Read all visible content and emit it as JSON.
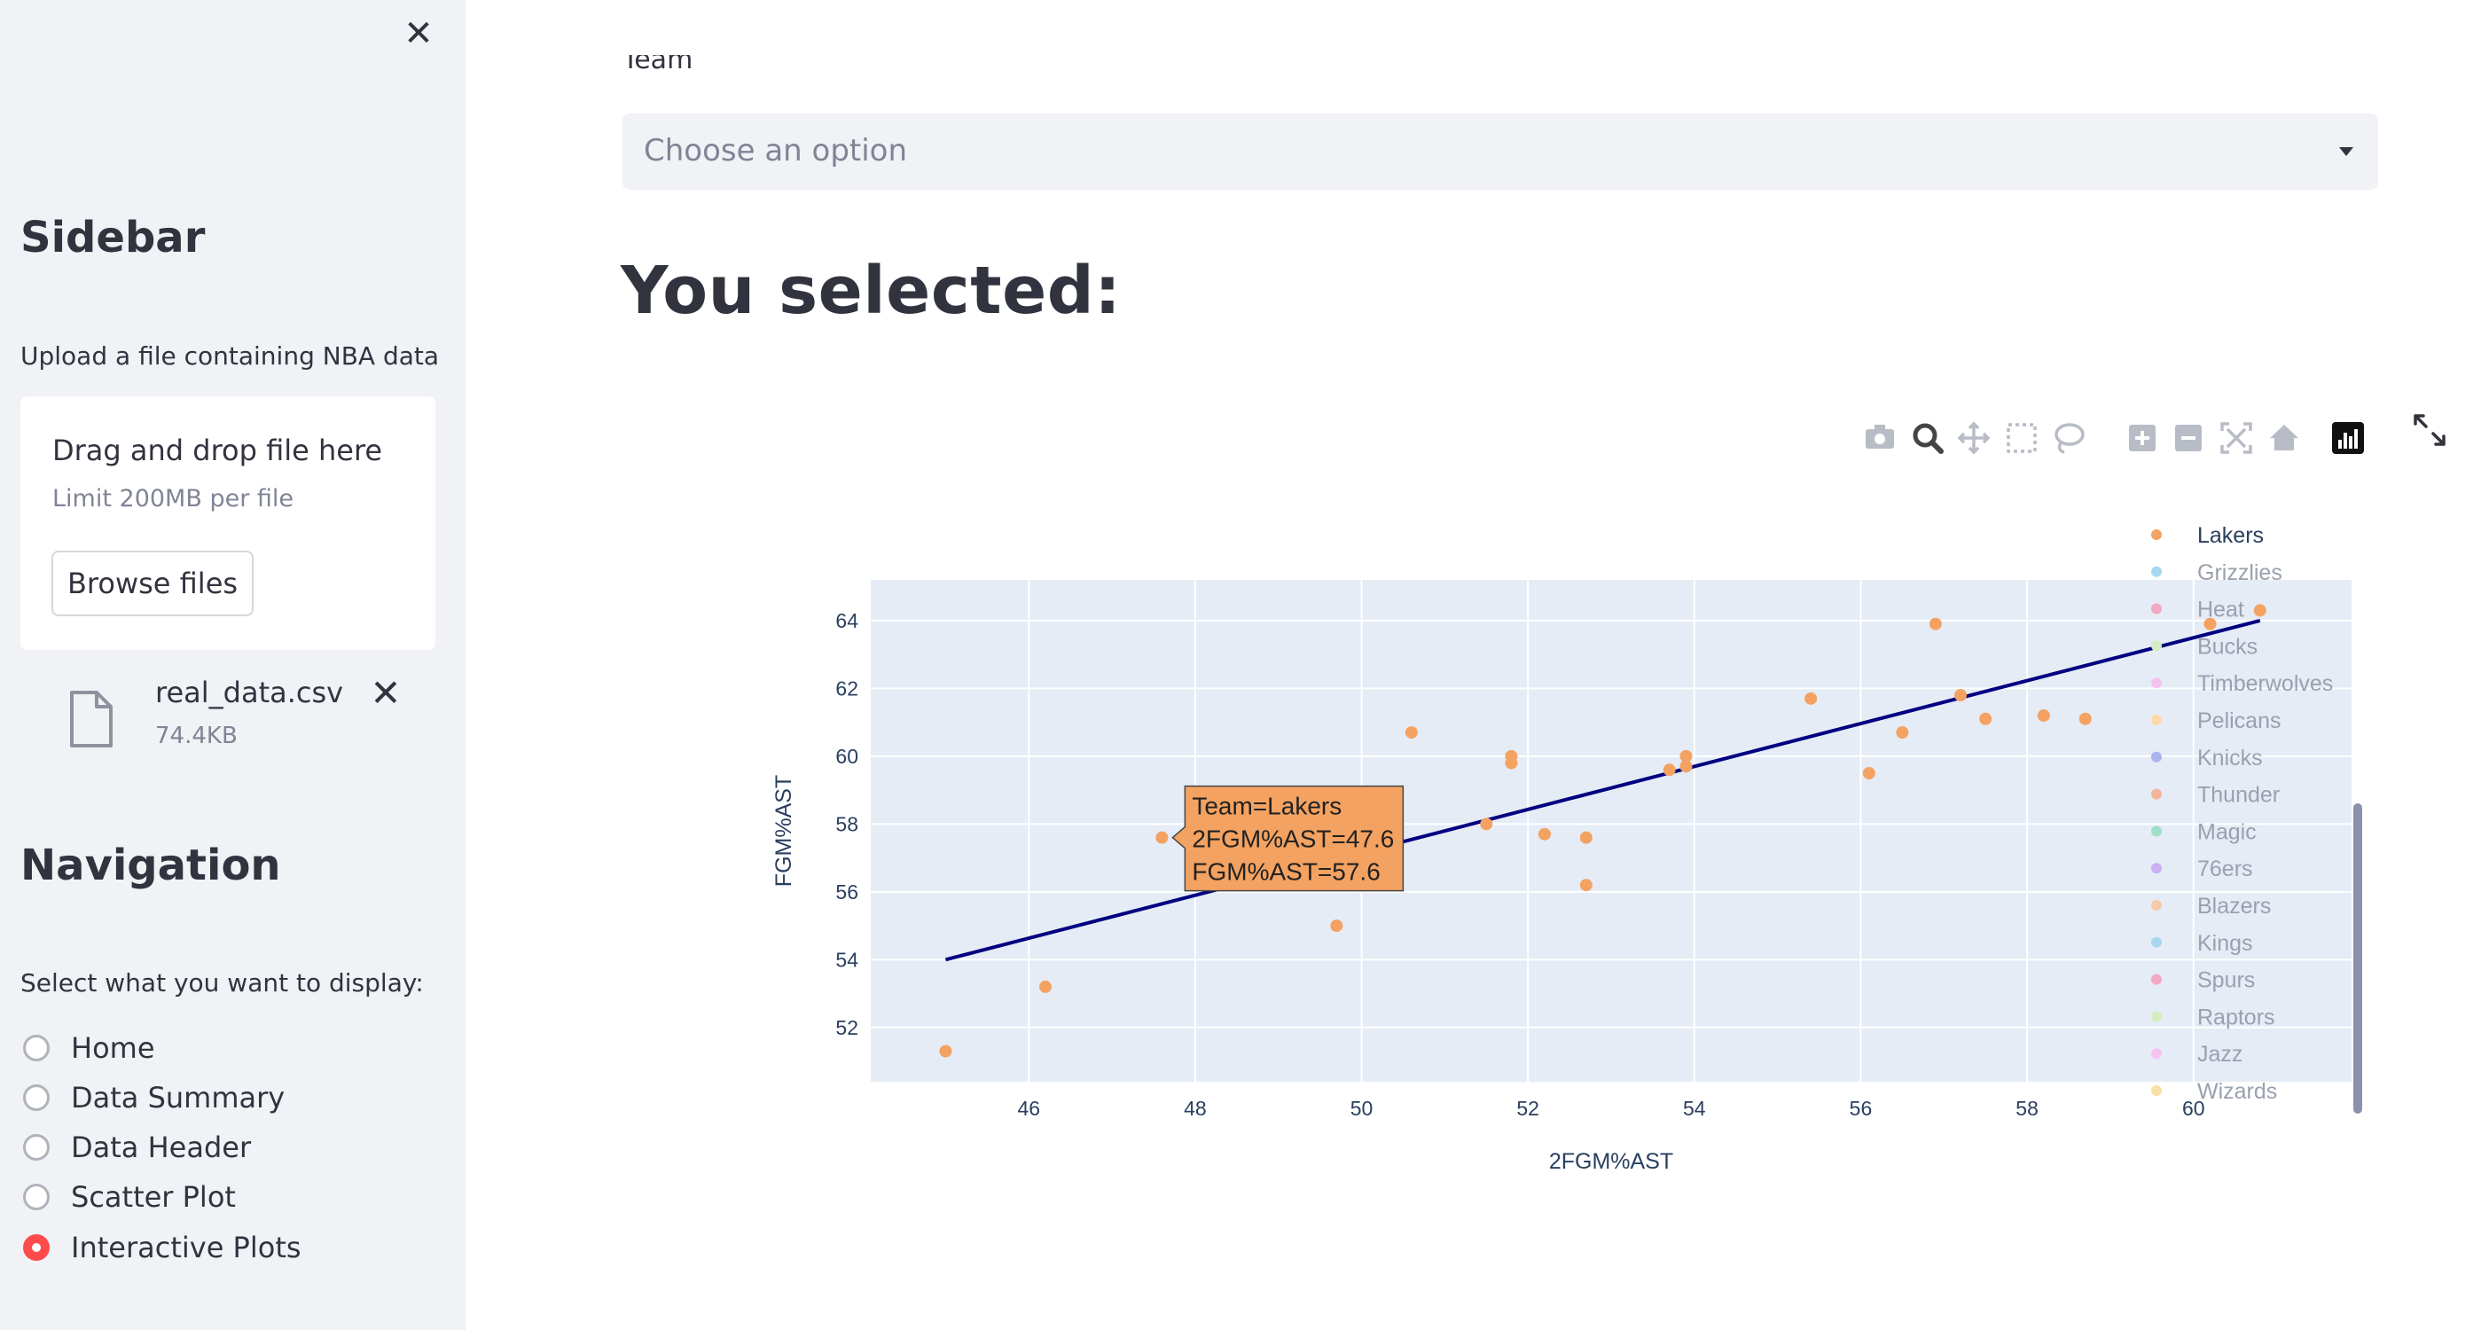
{
  "sidebar": {
    "title": "Sidebar",
    "upload_label": "Upload a file containing NBA data",
    "dropzone": {
      "main": "Drag and drop file here",
      "limit": "Limit 200MB per file",
      "browse": "Browse files"
    },
    "file": {
      "name": "real_data.csv",
      "size": "74.4KB"
    },
    "nav_title": "Navigation",
    "nav_prompt": "Select what you want to display:",
    "options": [
      {
        "label": "Home",
        "selected": false
      },
      {
        "label": "Data Summary",
        "selected": false
      },
      {
        "label": "Data Header",
        "selected": false
      },
      {
        "label": "Scatter Plot",
        "selected": false
      },
      {
        "label": "Interactive Plots",
        "selected": true
      }
    ]
  },
  "main": {
    "select_label": "Team",
    "select_placeholder": "Choose an option",
    "heading": "You selected:"
  },
  "modebar": {
    "icons": [
      "camera-icon",
      "zoom-icon",
      "pan-icon",
      "box-select-icon",
      "lasso-select-icon",
      "zoom-in-icon",
      "zoom-out-icon",
      "autoscale-icon",
      "reset-axes-icon",
      "plotly-logo-icon"
    ]
  },
  "colors": {
    "accent": "#ff4b4b",
    "point": "#f4a261",
    "trendline": "#000080",
    "plot_bg": "#e5ecf6",
    "tooltip_bg": "#f4a261"
  },
  "chart_data": {
    "type": "scatter",
    "xlabel": "2FGM%AST",
    "ylabel": "FGM%AST",
    "xlim": [
      44.1,
      61.9
    ],
    "ylim": [
      50.4,
      65.2
    ],
    "xticks": [
      46,
      48,
      50,
      52,
      54,
      56,
      58,
      60
    ],
    "yticks": [
      52,
      54,
      56,
      58,
      60,
      62,
      64
    ],
    "grid": true,
    "legend_position": "right",
    "series": [
      {
        "name": "Lakers",
        "color": "#f4a261",
        "points": [
          [
            45.0,
            51.3
          ],
          [
            46.2,
            53.2
          ],
          [
            47.6,
            57.6
          ],
          [
            49.7,
            55.0
          ],
          [
            50.6,
            60.7
          ],
          [
            51.5,
            58.0
          ],
          [
            51.8,
            60.0
          ],
          [
            51.8,
            59.8
          ],
          [
            52.2,
            57.7
          ],
          [
            52.7,
            57.6
          ],
          [
            52.7,
            56.2
          ],
          [
            53.7,
            59.6
          ],
          [
            53.9,
            60.0
          ],
          [
            53.9,
            59.7
          ],
          [
            55.4,
            61.7
          ],
          [
            56.1,
            59.5
          ],
          [
            56.5,
            60.7
          ],
          [
            56.9,
            63.9
          ],
          [
            57.2,
            61.8
          ],
          [
            57.5,
            61.1
          ],
          [
            58.2,
            61.2
          ],
          [
            58.7,
            61.1
          ],
          [
            60.2,
            63.9
          ],
          [
            60.8,
            64.3
          ]
        ]
      }
    ],
    "trendline": {
      "x": [
        45.0,
        60.8
      ],
      "y": [
        54.0,
        64.0
      ]
    },
    "legend": [
      {
        "name": "Lakers",
        "color": "#f4a261",
        "active": true
      },
      {
        "name": "Grizzlies",
        "color": "#a8d8f0",
        "active": false
      },
      {
        "name": "Heat",
        "color": "#f2a7c3",
        "active": false
      },
      {
        "name": "Bucks",
        "color": "#d4ecc0",
        "active": false
      },
      {
        "name": "Timberwolves",
        "color": "#f5c2ef",
        "active": false
      },
      {
        "name": "Pelicans",
        "color": "#fbd9a6",
        "active": false
      },
      {
        "name": "Knicks",
        "color": "#a9b3ee",
        "active": false
      },
      {
        "name": "Thunder",
        "color": "#f4b49a",
        "active": false
      },
      {
        "name": "Magic",
        "color": "#9fdfc8",
        "active": false
      },
      {
        "name": "76ers",
        "color": "#c9b1f2",
        "active": false
      },
      {
        "name": "Blazers",
        "color": "#f6c9a9",
        "active": false
      },
      {
        "name": "Kings",
        "color": "#a8d8f0",
        "active": false
      },
      {
        "name": "Spurs",
        "color": "#f2a7c3",
        "active": false
      },
      {
        "name": "Raptors",
        "color": "#d4ecc0",
        "active": false
      },
      {
        "name": "Jazz",
        "color": "#f5c2ef",
        "active": false
      },
      {
        "name": "Wizards",
        "color": "#fbe0a6",
        "active": false
      }
    ],
    "tooltip": {
      "point_index": 2,
      "lines": [
        "Team=Lakers",
        "2FGM%AST=47.6",
        "FGM%AST=57.6"
      ]
    }
  }
}
